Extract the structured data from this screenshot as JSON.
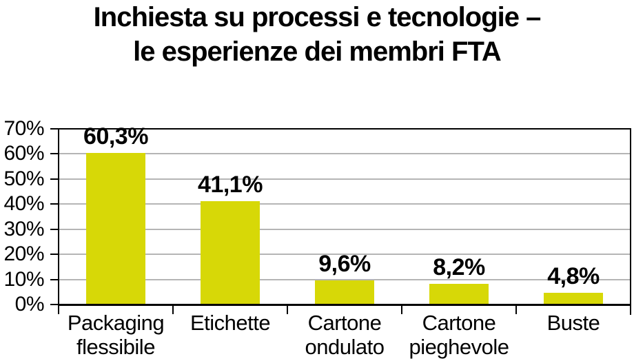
{
  "page": {
    "background": "#ffffff"
  },
  "title": {
    "line1": "Inchiesta su processi e tecnologie –",
    "line2": "le esperienze dei membri FTA"
  },
  "chart_data": {
    "type": "bar",
    "title": "Inchiesta su processi e tecnologie – le esperienze dei membri FTA",
    "categories": [
      "Packaging flessibile",
      "Etichette",
      "Cartone ondulato",
      "Cartone pieghevole",
      "Buste"
    ],
    "category_display": [
      "Packaging\nflessibile",
      "Etichette",
      "Cartone\nondulato",
      "Cartone\npieghevole",
      "Buste"
    ],
    "values": [
      60.3,
      41.1,
      9.6,
      8.2,
      4.8
    ],
    "value_labels": [
      "60,3%",
      "41,1%",
      "9,6%",
      "8,2%",
      "4,8%"
    ],
    "xlabel": "",
    "ylabel": "",
    "ylim": [
      0,
      70
    ],
    "yticks": [
      0,
      10,
      20,
      30,
      40,
      50,
      60,
      70
    ],
    "ytick_labels": [
      "0%",
      "10%",
      "20%",
      "30%",
      "40%",
      "50%",
      "60%",
      "70%"
    ],
    "grid": true,
    "legend": "none",
    "colors": {
      "bar": "#d7d807",
      "grid": "#b5b5b5",
      "axis": "#000000",
      "text": "#000000"
    }
  }
}
